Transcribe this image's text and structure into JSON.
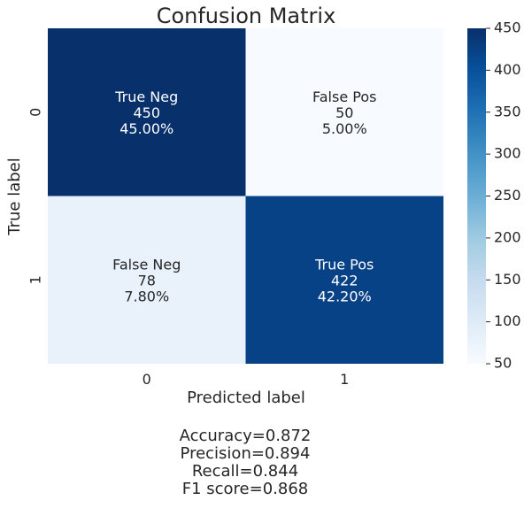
{
  "chart_data": {
    "type": "heatmap",
    "title": "Confusion Matrix",
    "xlabel": "Predicted label",
    "ylabel": "True label",
    "x_categories": [
      "0",
      "1"
    ],
    "y_categories": [
      "0",
      "1"
    ],
    "cells": [
      [
        {
          "label": "True Neg",
          "count": "450",
          "percent": "45.00%",
          "value": 450
        },
        {
          "label": "False Pos",
          "count": "50",
          "percent": "5.00%",
          "value": 50
        }
      ],
      [
        {
          "label": "False Neg",
          "count": "78",
          "percent": "7.80%",
          "value": 78
        },
        {
          "label": "True Pos",
          "count": "422",
          "percent": "42.20%",
          "value": 422
        }
      ]
    ],
    "colorbar": {
      "min": 50,
      "max": 450,
      "ticks": [
        "50",
        "100",
        "150",
        "200",
        "250",
        "300",
        "350",
        "400",
        "450"
      ],
      "colormap": "Blues",
      "low_color": "#f7fbff",
      "high_color": "#08306b"
    },
    "stats": [
      "Accuracy=0.872",
      "Precision=0.894",
      "Recall=0.844",
      "F1 score=0.868"
    ]
  }
}
